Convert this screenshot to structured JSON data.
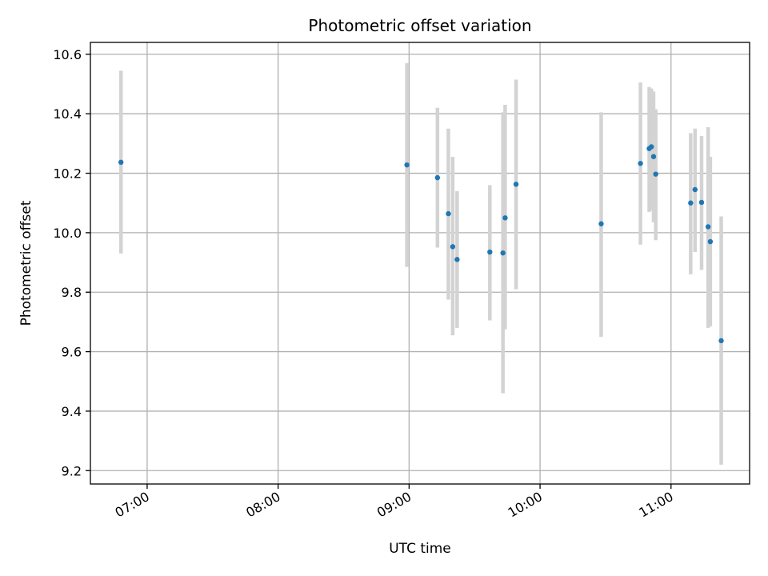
{
  "chart_data": {
    "type": "scatter",
    "title": "Photometric offset variation",
    "xlabel": "UTC time",
    "ylabel": "Photometric offset",
    "x_ticks": [
      "07:00",
      "08:00",
      "09:00",
      "10:00",
      "11:00"
    ],
    "y_ticks": [
      "9.2",
      "9.4",
      "9.6",
      "9.8",
      "10.0",
      "10.2",
      "10.4",
      "10.6"
    ],
    "xlim": [
      "06:34",
      "11:36"
    ],
    "ylim": [
      9.155,
      10.64
    ],
    "grid": true,
    "colors": {
      "marker": "#1f77b4",
      "errorbar": "#d3d3d3",
      "grid": "#b0b0b0"
    },
    "points": [
      {
        "x": "06:48",
        "y": 10.237,
        "err_low": 9.93,
        "err_high": 10.545
      },
      {
        "x": "08:59",
        "y": 10.228,
        "err_low": 9.885,
        "err_high": 10.57
      },
      {
        "x": "09:13",
        "y": 10.185,
        "err_low": 9.95,
        "err_high": 10.42
      },
      {
        "x": "09:18",
        "y": 10.064,
        "err_low": 9.775,
        "err_high": 10.35
      },
      {
        "x": "09:20",
        "y": 9.953,
        "err_low": 9.655,
        "err_high": 10.255
      },
      {
        "x": "09:22",
        "y": 9.91,
        "err_low": 9.68,
        "err_high": 10.14
      },
      {
        "x": "09:37",
        "y": 9.935,
        "err_low": 9.705,
        "err_high": 10.16
      },
      {
        "x": "09:43",
        "y": 9.932,
        "err_low": 9.46,
        "err_high": 10.405
      },
      {
        "x": "09:44",
        "y": 10.05,
        "err_low": 9.675,
        "err_high": 10.43
      },
      {
        "x": "09:49",
        "y": 10.163,
        "err_low": 9.81,
        "err_high": 10.515
      },
      {
        "x": "10:28",
        "y": 10.03,
        "err_low": 9.65,
        "err_high": 10.405
      },
      {
        "x": "10:46",
        "y": 10.233,
        "err_low": 9.96,
        "err_high": 10.505
      },
      {
        "x": "10:50",
        "y": 10.283,
        "err_low": 10.07,
        "err_high": 10.49
      },
      {
        "x": "10:51",
        "y": 10.289,
        "err_low": 10.075,
        "err_high": 10.485
      },
      {
        "x": "10:52",
        "y": 10.256,
        "err_low": 10.035,
        "err_high": 10.475
      },
      {
        "x": "10:53",
        "y": 10.197,
        "err_low": 9.975,
        "err_high": 10.415
      },
      {
        "x": "11:09",
        "y": 10.1,
        "err_low": 9.86,
        "err_high": 10.335
      },
      {
        "x": "11:11",
        "y": 10.145,
        "err_low": 9.935,
        "err_high": 10.35
      },
      {
        "x": "11:14",
        "y": 10.102,
        "err_low": 9.875,
        "err_high": 10.325
      },
      {
        "x": "11:17",
        "y": 10.02,
        "err_low": 9.68,
        "err_high": 10.355
      },
      {
        "x": "11:18",
        "y": 9.97,
        "err_low": 9.685,
        "err_high": 10.255
      },
      {
        "x": "11:23",
        "y": 9.637,
        "err_low": 9.22,
        "err_high": 10.055
      }
    ]
  }
}
